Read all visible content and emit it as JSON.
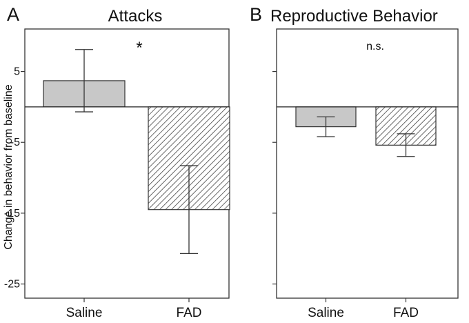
{
  "chart_data": [
    {
      "panel": "A",
      "type": "bar",
      "title": "Attacks",
      "ylabel": "Change in behavior from baseline",
      "categories": [
        "Saline",
        "FAD"
      ],
      "values": [
        3.7,
        -14.5
      ],
      "error": [
        4.4,
        6.2
      ],
      "fills": [
        "solid-gray",
        "hatched"
      ],
      "ylim": [
        -27,
        11
      ],
      "yticks": [
        5,
        -5,
        -15,
        -25
      ],
      "annotation": "*"
    },
    {
      "panel": "B",
      "type": "bar",
      "title": "Reproductive Behavior",
      "categories": [
        "Saline",
        "FAD"
      ],
      "values": [
        -2.8,
        -5.4
      ],
      "error": [
        1.4,
        1.6
      ],
      "fills": [
        "solid-gray",
        "hatched"
      ],
      "ylim": [
        -27,
        11
      ],
      "yticks": [
        5,
        -5,
        -15,
        -25
      ],
      "annotation": "n.s."
    }
  ],
  "colors": {
    "saline_fill": "#c8c8c8",
    "hatch": "#444444",
    "axis": "#333333"
  }
}
